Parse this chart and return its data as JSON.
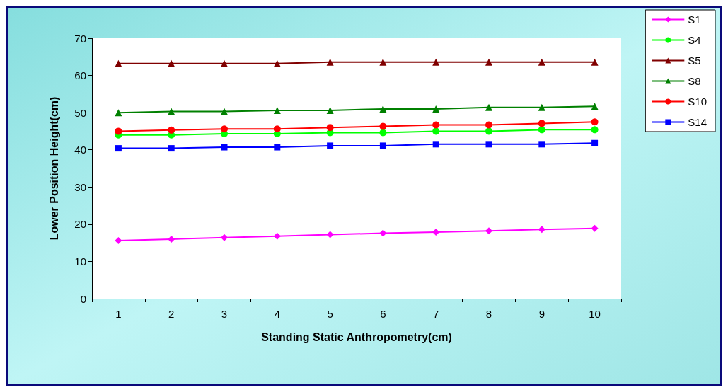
{
  "chart_data": {
    "type": "line",
    "xlabel": "Standing Static Anthropometry(cm)",
    "ylabel": "Lower Position Height(cm)",
    "categories": [
      "1",
      "2",
      "3",
      "4",
      "5",
      "6",
      "7",
      "8",
      "9",
      "10"
    ],
    "ylim": [
      0,
      70
    ],
    "yticks": [
      0,
      10,
      20,
      30,
      40,
      50,
      60,
      70
    ],
    "grid": false,
    "legend": "top right",
    "series": [
      {
        "name": "S1",
        "color": "#ff00ff",
        "marker": "diamond",
        "values": [
          15.6,
          16.0,
          16.4,
          16.8,
          17.2,
          17.6,
          17.9,
          18.2,
          18.6,
          18.9
        ]
      },
      {
        "name": "S4",
        "color": "#00ff00",
        "marker": "circle",
        "values": [
          44.0,
          44.0,
          44.3,
          44.3,
          44.6,
          44.6,
          45.0,
          45.0,
          45.4,
          45.4
        ]
      },
      {
        "name": "S5",
        "color": "#800000",
        "marker": "triangle",
        "values": [
          63.2,
          63.2,
          63.2,
          63.2,
          63.6,
          63.6,
          63.6,
          63.6,
          63.6,
          63.6
        ]
      },
      {
        "name": "S8",
        "color": "#008000",
        "marker": "triangle",
        "values": [
          50.0,
          50.3,
          50.3,
          50.6,
          50.6,
          51.0,
          51.0,
          51.4,
          51.4,
          51.7
        ]
      },
      {
        "name": "S10",
        "color": "#ff0000",
        "marker": "circle",
        "values": [
          45.0,
          45.3,
          45.6,
          45.6,
          46.0,
          46.3,
          46.7,
          46.7,
          47.1,
          47.5
        ]
      },
      {
        "name": "S14",
        "color": "#0000ff",
        "marker": "square",
        "values": [
          40.4,
          40.4,
          40.7,
          40.7,
          41.1,
          41.1,
          41.5,
          41.5,
          41.5,
          41.8
        ]
      }
    ]
  }
}
